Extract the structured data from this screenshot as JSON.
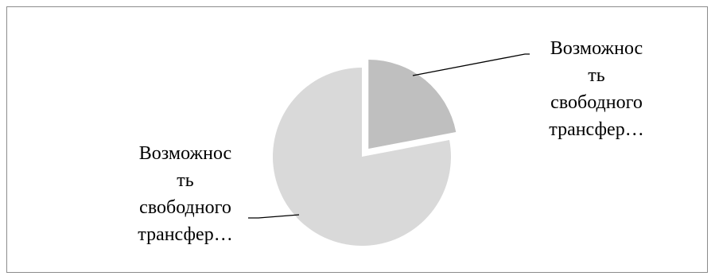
{
  "chart_data": {
    "type": "pie",
    "slices": [
      {
        "label": "Возможнос\nть\nсвободного\nтрансфер…",
        "value": 22,
        "color": "#bfbfbf"
      },
      {
        "label": "Возможнос\nть\nсвободного\nтрансфер…",
        "value": 78,
        "color": "#d9d9d9"
      }
    ],
    "title": "",
    "legend": "none"
  }
}
